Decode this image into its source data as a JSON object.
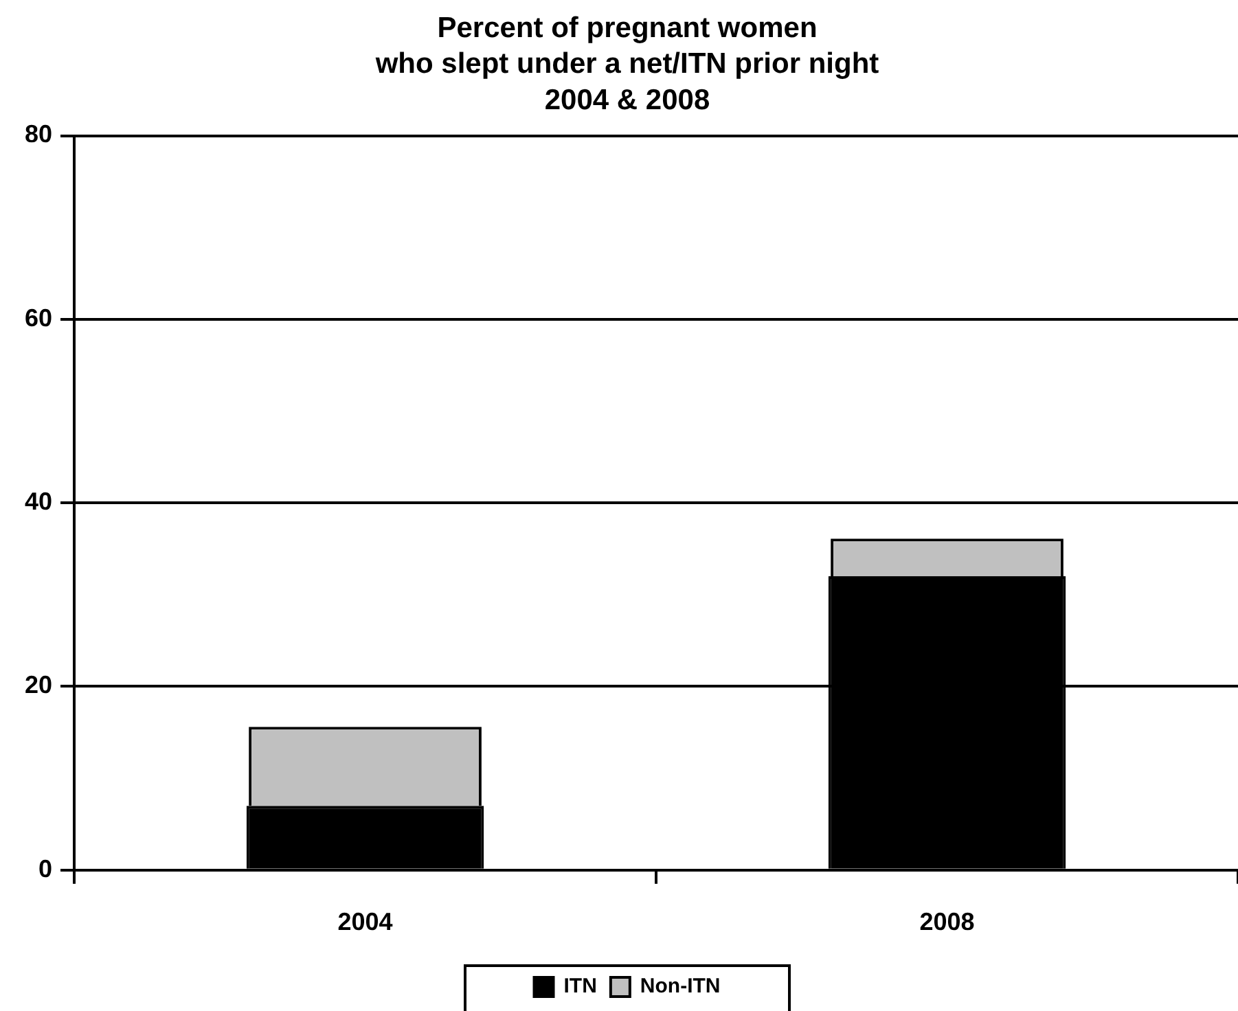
{
  "chart_data": {
    "type": "bar",
    "title": "Percent of pregnant women\nwho slept under a net/ITN prior night\n2004 & 2008",
    "categories": [
      "2004",
      "2008"
    ],
    "stacked": true,
    "series": [
      {
        "name": "ITN",
        "color": "#000000",
        "values": [
          7,
          32
        ]
      },
      {
        "name": "Non-ITN",
        "color": "#c0c0c0",
        "values": [
          8.6,
          4.1
        ]
      }
    ],
    "ylim": [
      0,
      80
    ],
    "yticks": [
      0,
      20,
      40,
      60,
      80
    ],
    "grid": "y",
    "legend": "bottom"
  }
}
